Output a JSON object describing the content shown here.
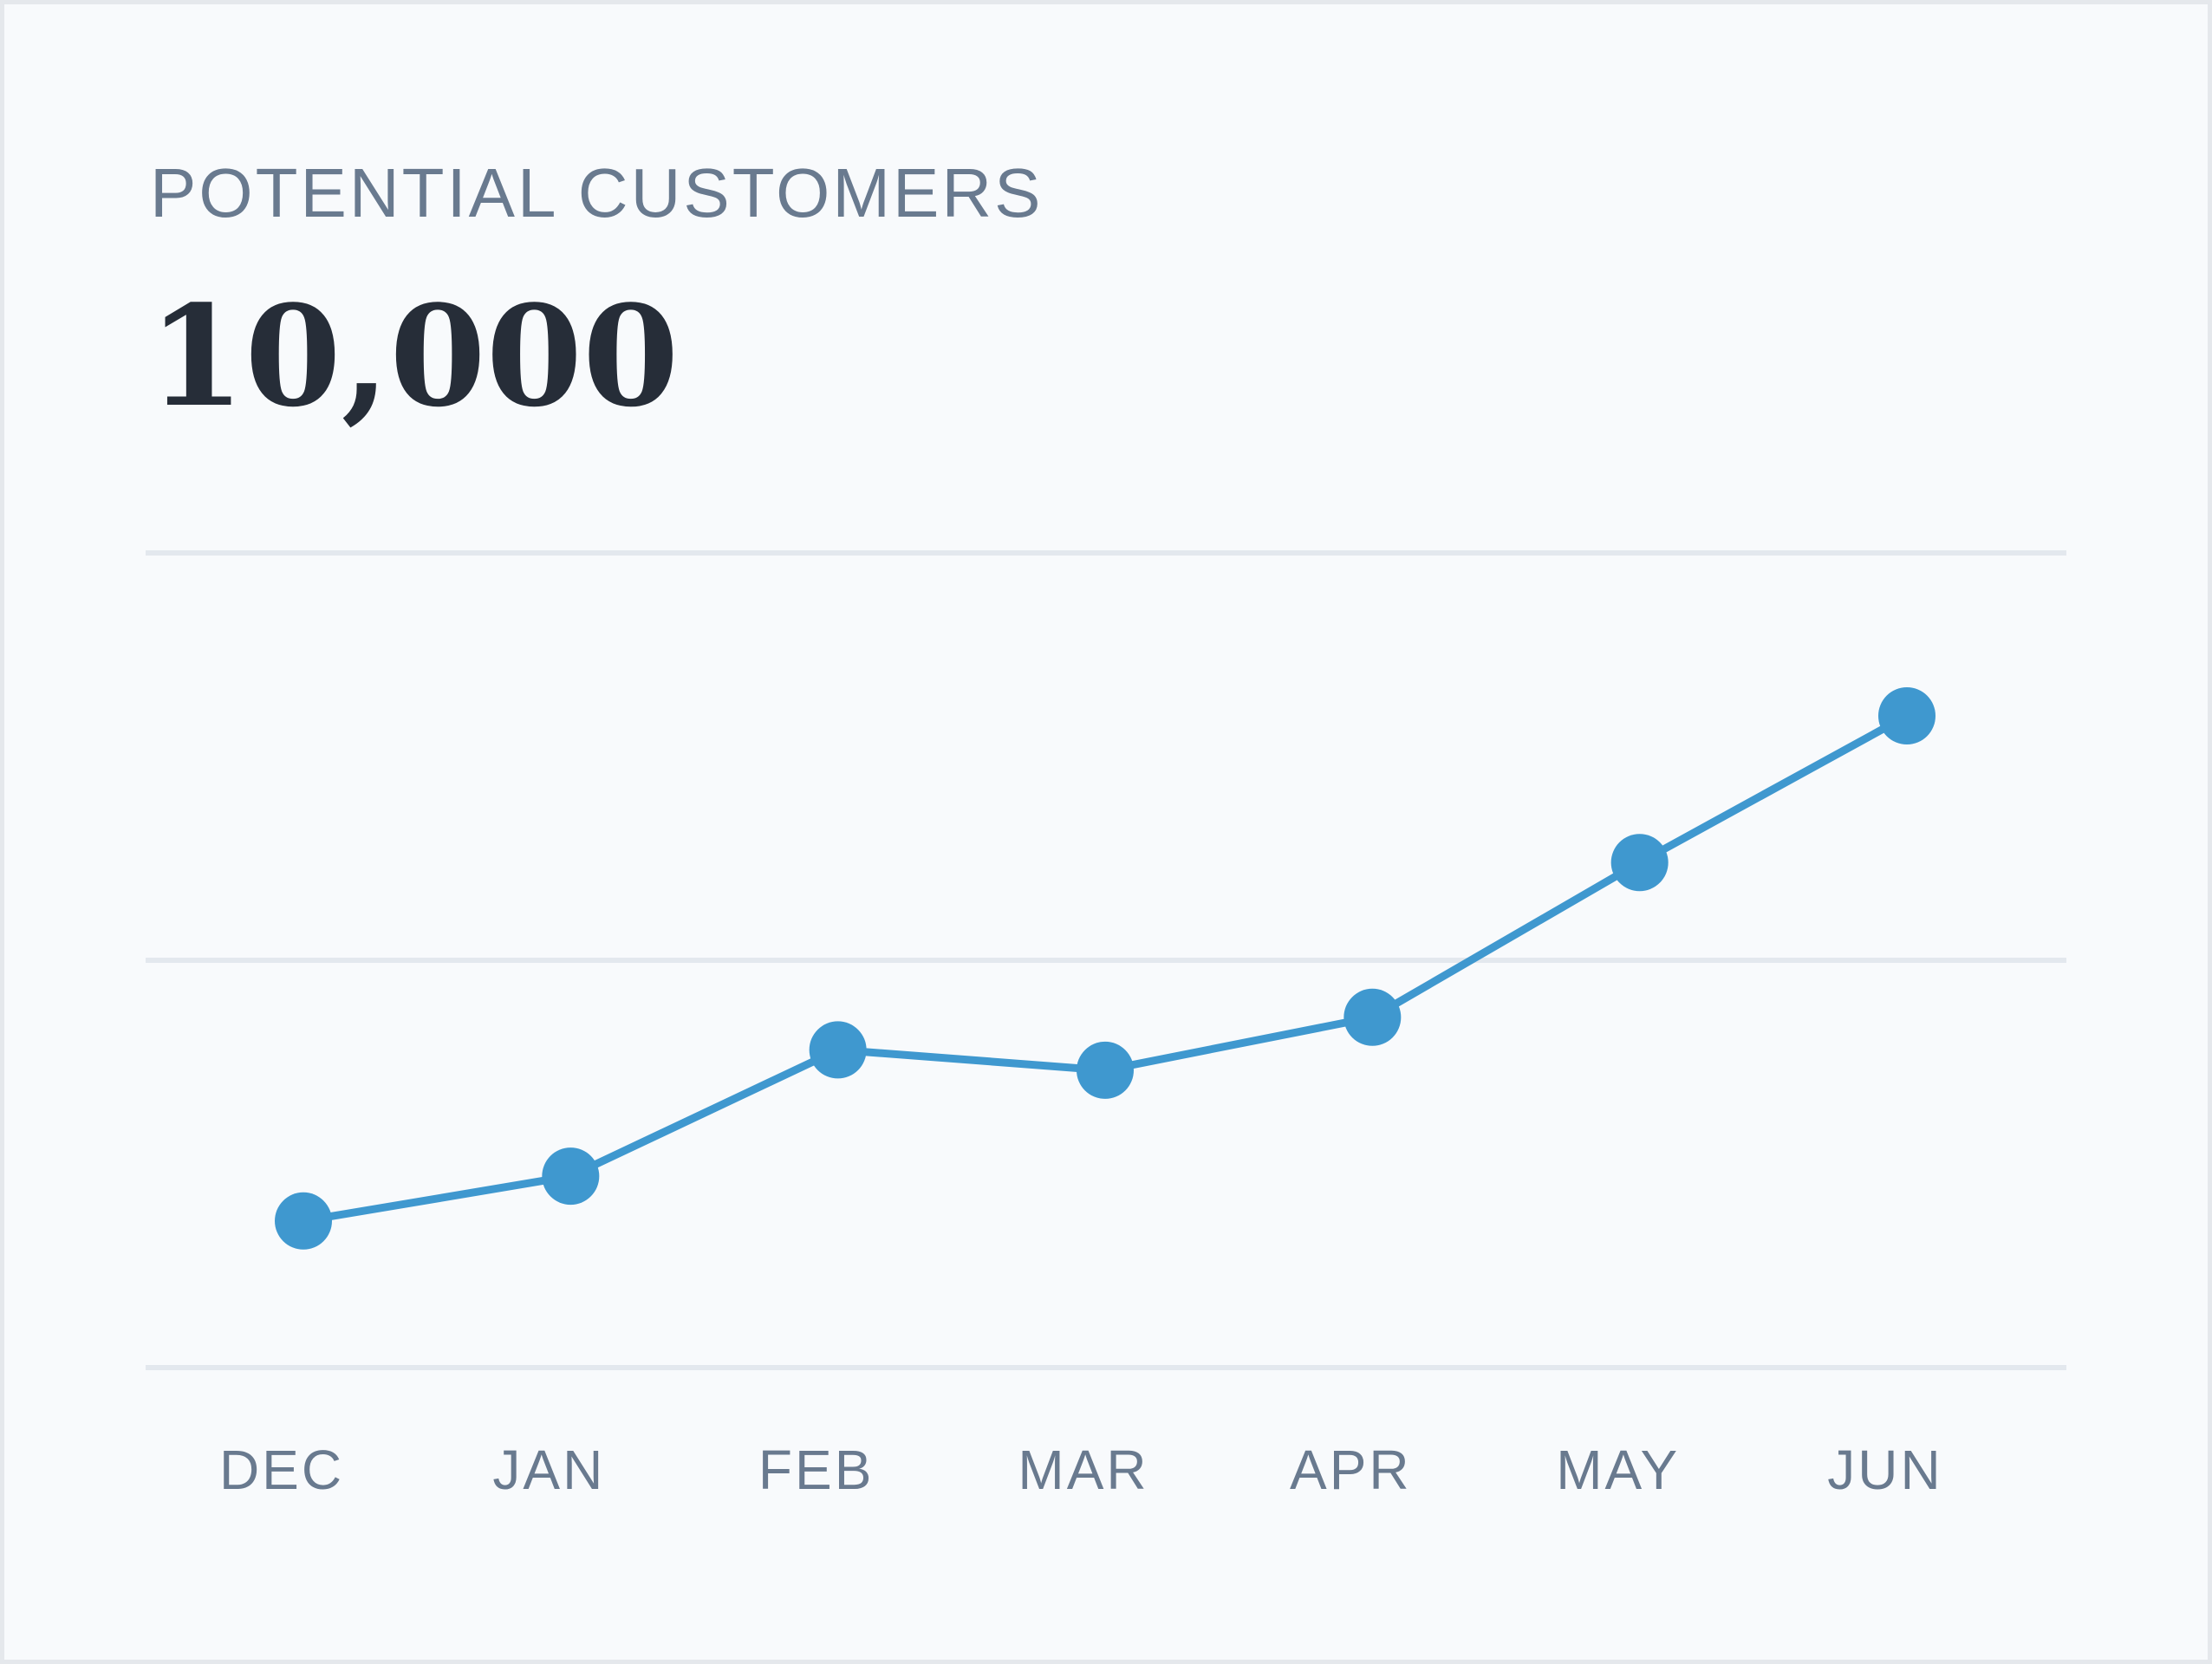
{
  "card": {
    "label": "POTENTIAL CUSTOMERS",
    "value": "10,000"
  },
  "colors": {
    "line": "#3f98cf",
    "grid": "#e3e8ee",
    "tick_text": "#697a8f",
    "label_text": "#697a8f",
    "value_text": "#262d38",
    "background": "#f8fafc"
  },
  "chart_data": {
    "type": "line",
    "categories": [
      "DEC",
      "JAN",
      "FEB",
      "MAR",
      "APR",
      "MAY",
      "JUN"
    ],
    "series": [
      {
        "values": [
          36,
          47,
          78,
          73,
          86,
          124,
          160
        ]
      }
    ],
    "ylim": [
      0,
      200
    ],
    "grid": true,
    "markers": true,
    "legend": "none"
  }
}
